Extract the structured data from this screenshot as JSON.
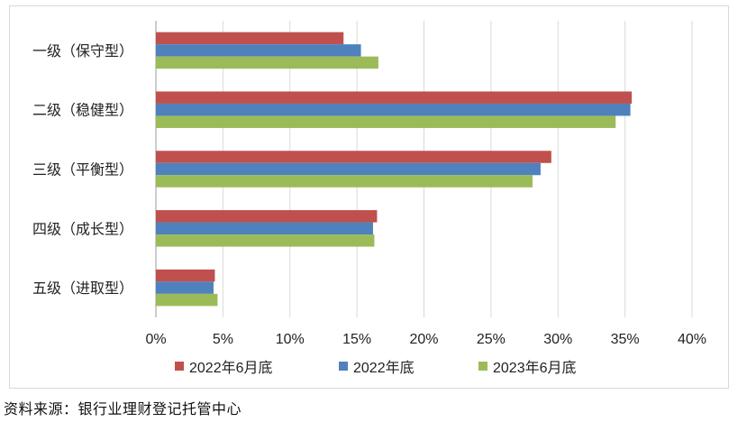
{
  "chart_data": {
    "type": "bar",
    "orientation": "horizontal",
    "categories": [
      "一级（保守型）",
      "二级（稳健型）",
      "三级（平衡型）",
      "四级（成长型）",
      "五级（进取型）"
    ],
    "series": [
      {
        "name": "2022年6月底",
        "color": "#c0504d",
        "values": [
          14.0,
          35.5,
          29.5,
          16.5,
          4.4
        ]
      },
      {
        "name": "2022年底",
        "color": "#4f81bd",
        "values": [
          15.3,
          35.4,
          28.7,
          16.2,
          4.3
        ]
      },
      {
        "name": "2023年6月底",
        "color": "#9bbb59",
        "values": [
          16.6,
          34.3,
          28.1,
          16.3,
          4.6
        ]
      }
    ],
    "xlim": [
      0,
      40
    ],
    "xticks": [
      "0%",
      "5%",
      "10%",
      "15%",
      "20%",
      "25%",
      "30%",
      "35%",
      "40%"
    ],
    "grid": true,
    "legend_position": "bottom"
  },
  "source_note": "资料来源：银行业理财登记托管中心"
}
